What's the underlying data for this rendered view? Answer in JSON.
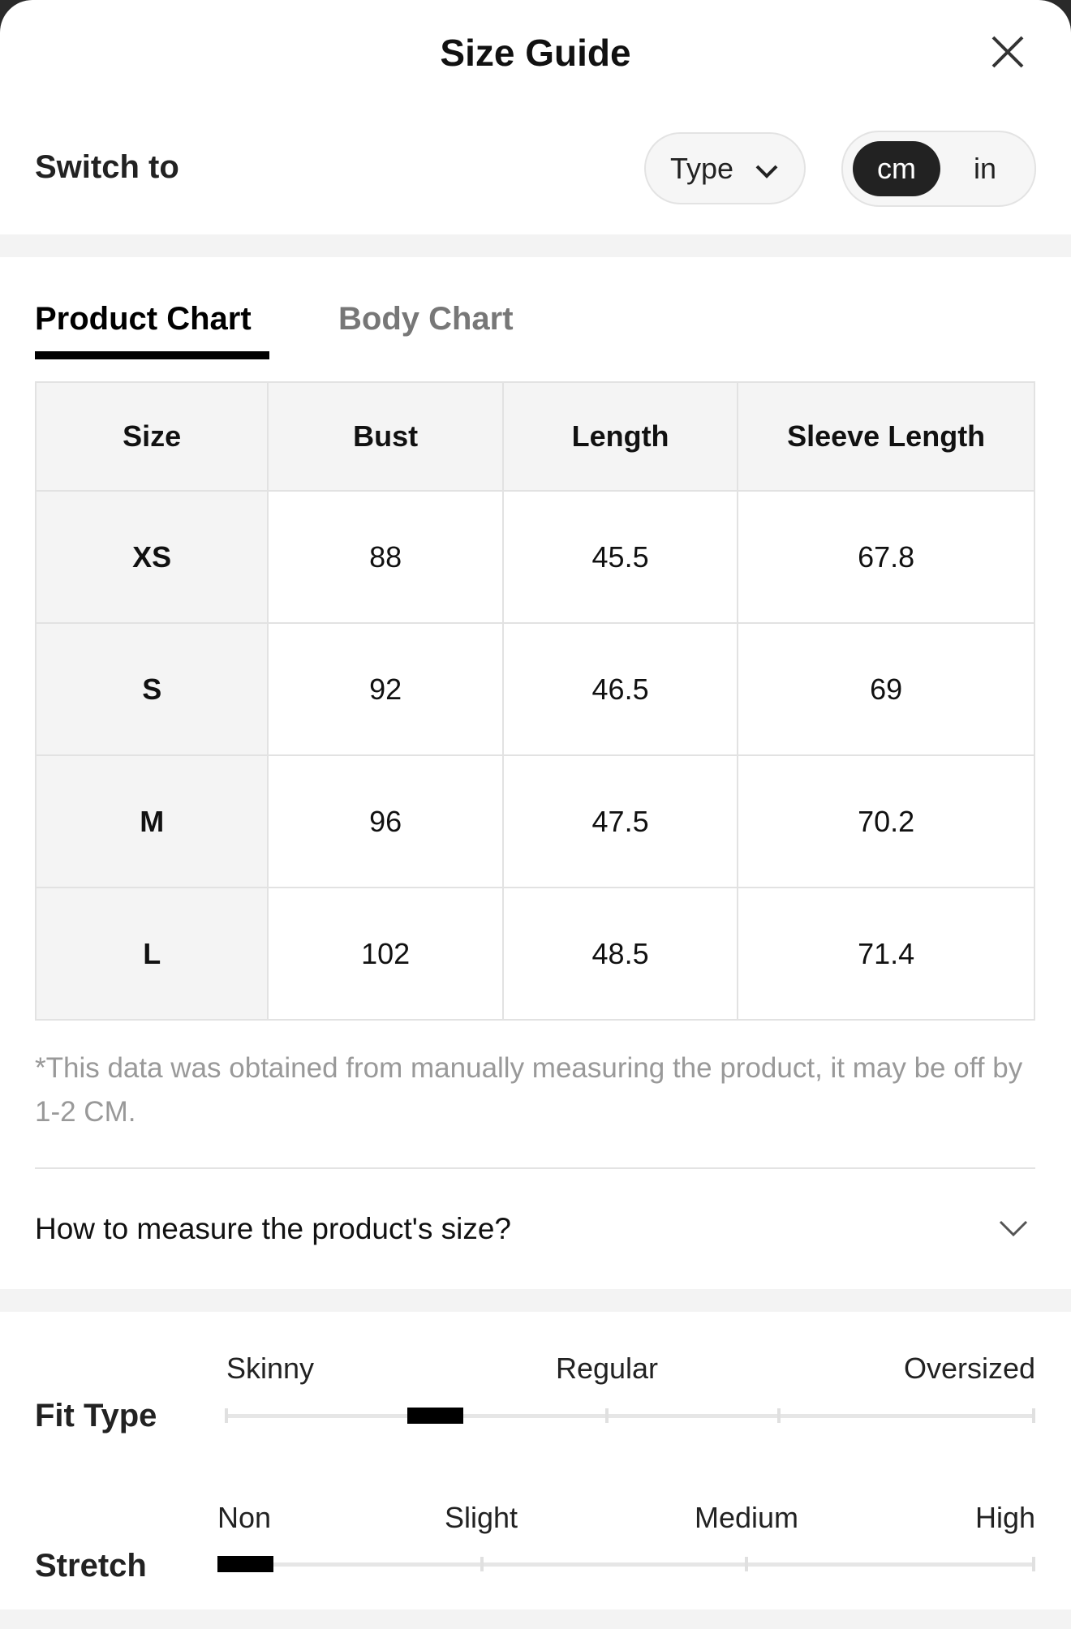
{
  "header": {
    "title": "Size Guide"
  },
  "switch": {
    "label": "Switch to",
    "type": "Type",
    "units": [
      "cm",
      "in"
    ]
  },
  "tabs": [
    "Product Chart",
    "Body Chart"
  ],
  "table": {
    "headers": [
      "Size",
      "Bust",
      "Length",
      "Sleeve Length"
    ],
    "rows": [
      [
        "XS",
        88,
        45.5,
        67.8
      ],
      [
        "S",
        92,
        46.5,
        69
      ],
      [
        "M",
        96,
        47.5,
        70.2
      ],
      [
        "L",
        102,
        48.5,
        71.4
      ]
    ]
  },
  "note": "*This data was obtained from manually measuring the product, it may be off by 1-2 CM.",
  "measure": {
    "label": "How to measure the product's size?"
  },
  "fit": {
    "label": "Fit Type",
    "levels": [
      "Skinny",
      "Regular",
      "Oversized"
    ]
  },
  "stretch": {
    "label": "Stretch",
    "levels": [
      "Non",
      "Slight",
      "Medium",
      "High"
    ]
  }
}
